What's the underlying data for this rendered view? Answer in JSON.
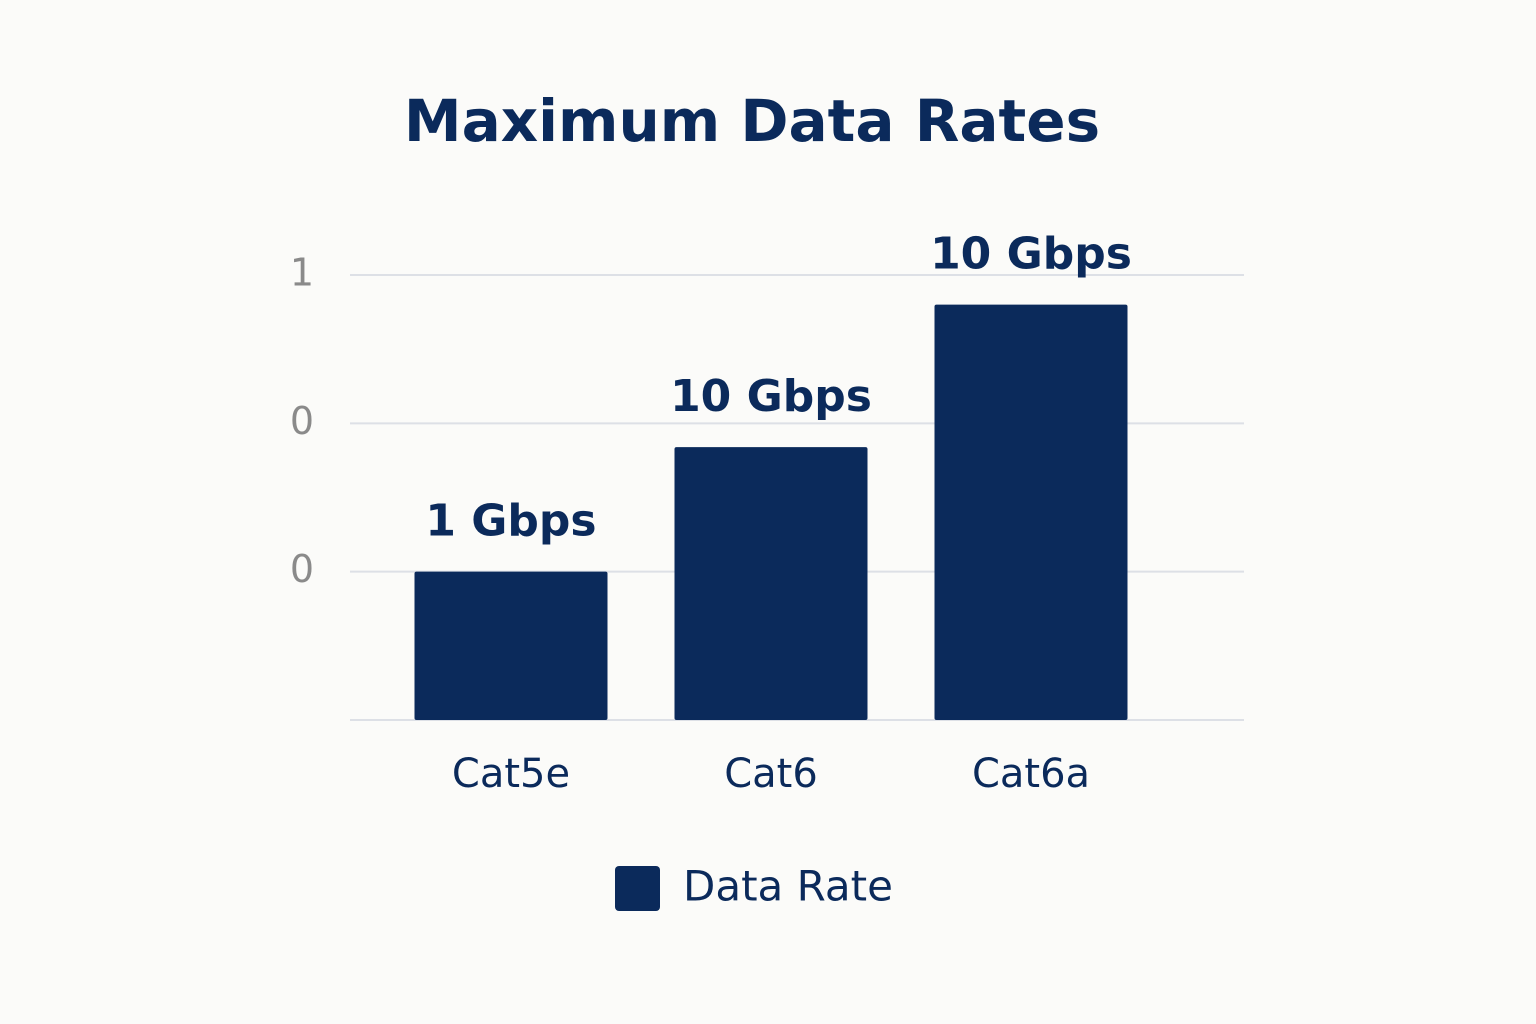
{
  "chart_data": {
    "type": "bar",
    "title": "Maximum Data Rates",
    "categories": [
      "Cat5e",
      "Cat6",
      "Cat6a"
    ],
    "series": [
      {
        "name": "Data Rate",
        "color": "#0b2a5b",
        "values": [
          0.25,
          0.46,
          0.7
        ]
      }
    ],
    "annotations": [
      "1 Gbps",
      "10 Gbps",
      "10 Gbps"
    ],
    "ylim": [
      0,
      0.75
    ],
    "yticks": [
      {
        "value": 0.25,
        "label": "0"
      },
      {
        "value": 0.5,
        "label": "0"
      },
      {
        "value": 0.75,
        "label": "1"
      }
    ],
    "grid": true,
    "legend": "bottom"
  }
}
